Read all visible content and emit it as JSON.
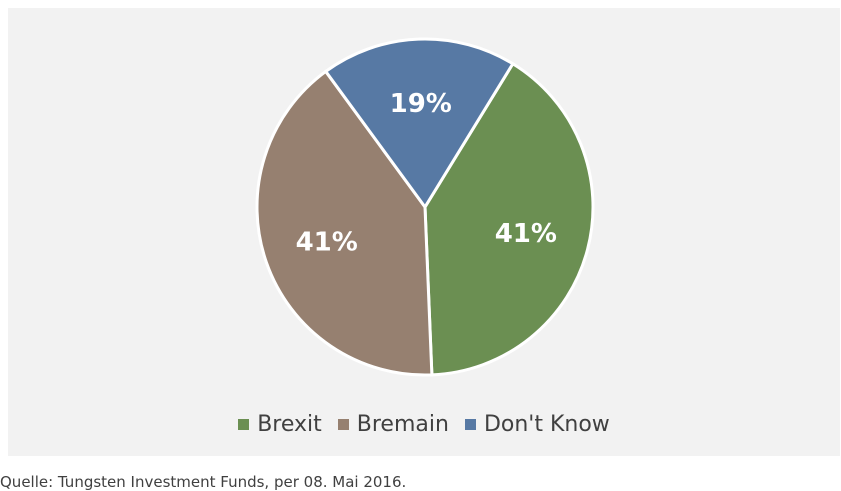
{
  "chart_data": {
    "type": "pie",
    "categories": [
      "Brexit",
      "Bremain",
      "Don't Know"
    ],
    "values": [
      41,
      41,
      19
    ],
    "labels": [
      "41%",
      "41%",
      "19%"
    ],
    "colors": [
      "#6b8f52",
      "#968070",
      "#5779a4"
    ],
    "legend_position": "bottom"
  },
  "legend": {
    "items": [
      {
        "label": "Brexit",
        "color": "#6b8f52"
      },
      {
        "label": "Bremain",
        "color": "#968070"
      },
      {
        "label": "Don't Know",
        "color": "#5779a4"
      }
    ]
  },
  "source": "Quelle: Tungsten Investment Funds, per 08. Mai 2016."
}
